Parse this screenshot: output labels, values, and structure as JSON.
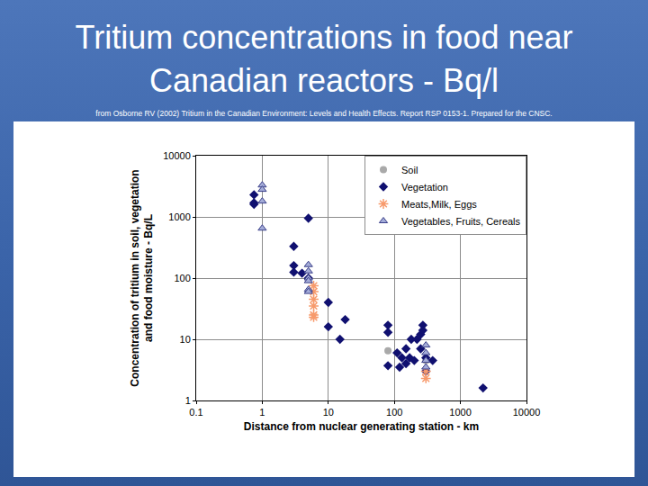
{
  "chart_data": {
    "type": "scatter",
    "title": "Tritium concentrations in food near Canadian reactors - Bq/l",
    "subtitle": "from Osborne RV (2002) Tritium in the Canadian Environment: Levels and Health Effects. Report RSP 0153-1. Prepared for the CNSC.",
    "xlabel": "Distance from nuclear generating station - km",
    "ylabel": [
      "Concentration of tritium in soil, vegetation",
      "and food moisture - Bq/L"
    ],
    "log": true,
    "grid": true,
    "legend": "top-right",
    "xlim": [
      0.1,
      10000
    ],
    "ylim": [
      1,
      10000
    ],
    "xticks": [
      0.1,
      1,
      10,
      100,
      1000,
      10000
    ],
    "yticks": [
      1,
      10,
      100,
      1000,
      10000
    ],
    "series": [
      {
        "name": "Soil",
        "color": "#a9a9a9",
        "marker": "circle",
        "x": [
          80,
          300
        ],
        "values": [
          6.5,
          4.5
        ]
      },
      {
        "name": "Vegetation",
        "color": "#101070",
        "marker": "diamond",
        "x": [
          0.75,
          0.75,
          0.75,
          5,
          3,
          3,
          3,
          4,
          5,
          10,
          10,
          15,
          18,
          80,
          80,
          80,
          110,
          120,
          130,
          150,
          150,
          170,
          180,
          200,
          220,
          250,
          250,
          270,
          270,
          300,
          300,
          380,
          2200
        ],
        "values": [
          2300,
          1700,
          1600,
          950,
          330,
          160,
          125,
          120,
          100,
          40,
          16,
          10,
          21,
          17,
          13,
          3.7,
          6,
          3.5,
          5,
          7,
          4,
          5,
          10,
          4.5,
          10,
          12,
          7,
          17,
          14,
          5,
          3,
          4.5,
          1.6
        ]
      },
      {
        "name": "Meats,Milk, Eggs",
        "color": "#f79a6c",
        "marker": "asterisk-open",
        "x": [
          6,
          6,
          6,
          6,
          6,
          6,
          300,
          300
        ],
        "values": [
          75,
          60,
          45,
          35,
          25,
          23,
          3,
          2.3
        ]
      },
      {
        "name": "Vegetables, Fruits, Cereals",
        "color": "#a4acd8",
        "marker": "triangle-up",
        "x": [
          1,
          1,
          1,
          1,
          5,
          5,
          5,
          5,
          5,
          5,
          300,
          300,
          300,
          300
        ],
        "values": [
          3300,
          2800,
          1800,
          650,
          165,
          130,
          100,
          90,
          65,
          60,
          8,
          6,
          4.5,
          3.5
        ]
      }
    ]
  }
}
